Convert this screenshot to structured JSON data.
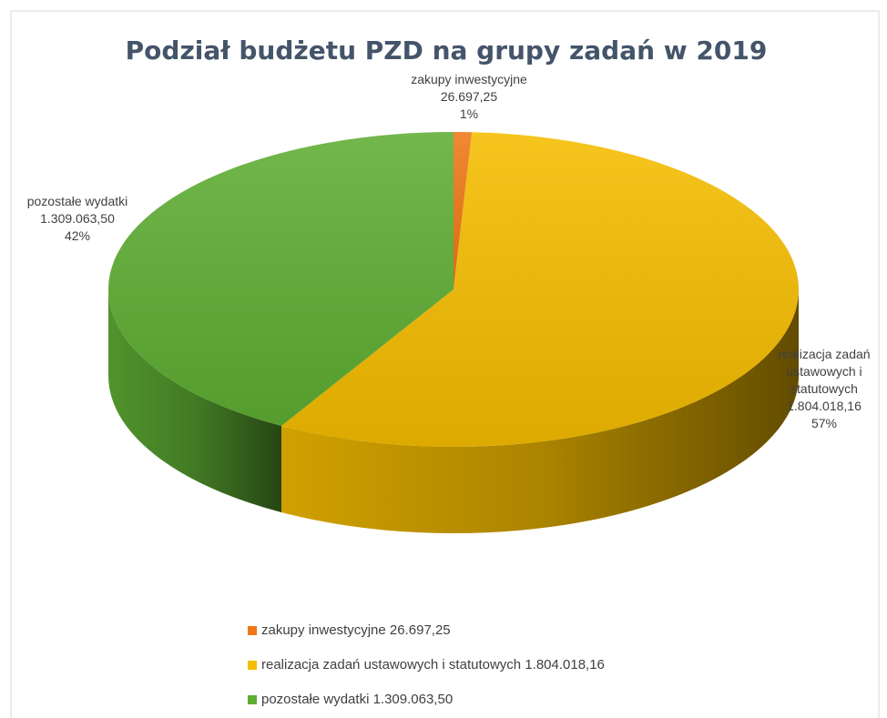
{
  "chart_data": {
    "type": "pie3d",
    "title": "Podział budżetu PZD na grupy zadań w 2019",
    "categories": [
      "zakupy inwestycyjne",
      "realizacja zadań ustawowych i statutowych",
      "pozostałe wydatki"
    ],
    "values": [
      26697.25,
      1804018.16,
      1309063.5
    ],
    "value_labels": [
      "26.697,25",
      "1.804.018,16",
      "1.309.063,50"
    ],
    "percentages": [
      1,
      57,
      42
    ],
    "percentage_labels": [
      "1%",
      "57%",
      "42%"
    ],
    "colors": [
      "#f07818",
      "#f5bd00",
      "#5fae34"
    ],
    "legend": "bottom"
  }
}
